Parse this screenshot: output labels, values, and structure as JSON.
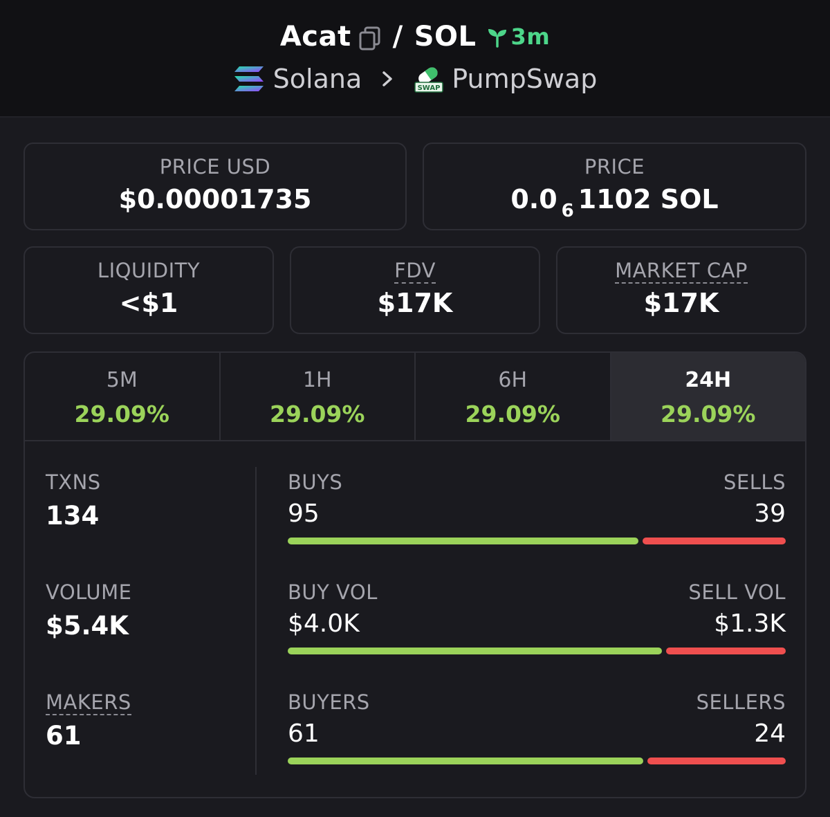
{
  "header": {
    "token": "Acat",
    "separator": "/",
    "quote": "SOL",
    "age": "3m",
    "chain": "Solana",
    "dex": "PumpSwap",
    "dex_logo_text": "SWAP",
    "colors": {
      "age": "#4dd68a",
      "positive": "#9bd35a",
      "negative": "#ef4f4f"
    }
  },
  "price_usd": {
    "label": "PRICE USD",
    "value": "$0.00001735"
  },
  "price": {
    "label": "PRICE",
    "prefix": "0.0",
    "zeros": "6",
    "suffix": "1102 SOL"
  },
  "liquidity": {
    "label": "LIQUIDITY",
    "value": "<$1"
  },
  "fdv": {
    "label": "FDV",
    "value": "$17K"
  },
  "market_cap": {
    "label": "MARKET CAP",
    "value": "$17K"
  },
  "tabs": [
    {
      "label": "5M",
      "value": "29.09%"
    },
    {
      "label": "1H",
      "value": "29.09%"
    },
    {
      "label": "6H",
      "value": "29.09%"
    },
    {
      "label": "24H",
      "value": "29.09%",
      "active": true
    }
  ],
  "stats": {
    "txns": {
      "label": "TXNS",
      "value": "134"
    },
    "volume": {
      "label": "VOLUME",
      "value": "$5.4K"
    },
    "makers": {
      "label": "MAKERS",
      "value": "61"
    }
  },
  "ratios": {
    "txns": {
      "left_label": "BUYS",
      "left_value": "95",
      "right_label": "SELLS",
      "right_value": "39",
      "left_share": 0.709
    },
    "volume": {
      "left_label": "BUY VOL",
      "left_value": "$4.0K",
      "right_label": "SELL VOL",
      "right_value": "$1.3K",
      "left_share": 0.755
    },
    "makers": {
      "left_label": "BUYERS",
      "left_value": "61",
      "right_label": "SELLERS",
      "right_value": "24",
      "left_share": 0.718
    }
  }
}
